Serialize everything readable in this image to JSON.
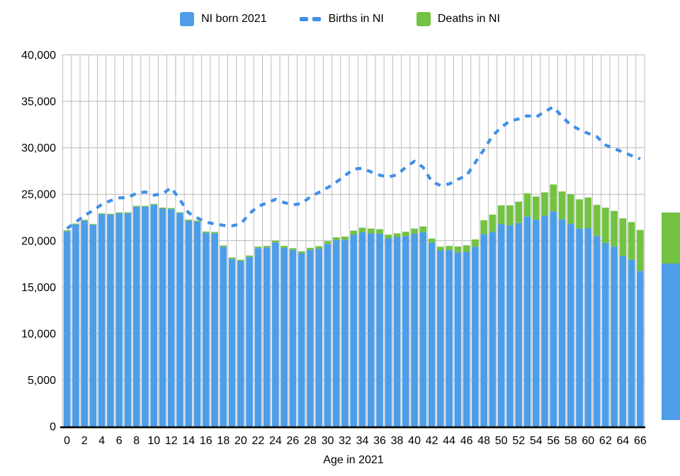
{
  "page": {
    "background": "#ffffff"
  },
  "legend": {
    "items": [
      {
        "label": "NI born 2021",
        "swatch": "square",
        "color": "#4D9DE8"
      },
      {
        "label": "Births in NI",
        "swatch": "dashes",
        "color": "#3E90E7"
      },
      {
        "label": "Deaths in NI",
        "swatch": "square",
        "color": "#74C242"
      }
    ]
  },
  "axis": {
    "x_title": "Age in 2021"
  },
  "chart_data": {
    "type": "bar",
    "subtype": "stacked-bars-with-dashed-line-overlay",
    "title": "",
    "xlabel": "Age in 2021",
    "ylabel": "",
    "ylim": [
      0,
      40000
    ],
    "ytick_step": 5000,
    "xtick_step": 2,
    "grid": {
      "vertical": true,
      "horizontal": true
    },
    "legend_position": "top",
    "categories": [
      0,
      1,
      2,
      3,
      4,
      5,
      6,
      7,
      8,
      9,
      10,
      11,
      12,
      13,
      14,
      15,
      16,
      17,
      18,
      19,
      20,
      21,
      22,
      23,
      24,
      25,
      26,
      27,
      28,
      29,
      30,
      31,
      32,
      33,
      34,
      35,
      36,
      37,
      38,
      39,
      40,
      41,
      42,
      43,
      44,
      45,
      46,
      47,
      48,
      49,
      50,
      51,
      52,
      53,
      54,
      55,
      56,
      57,
      58,
      59,
      60,
      61,
      62,
      63,
      64,
      65,
      66
    ],
    "series": [
      {
        "name": "NI born 2021",
        "kind": "bar",
        "color": "#4D9DE8",
        "values": [
          21000,
          21750,
          22150,
          21700,
          22850,
          22800,
          22950,
          22950,
          23650,
          23650,
          23850,
          23450,
          23400,
          22950,
          22150,
          22050,
          20850,
          20800,
          19350,
          18050,
          17800,
          18250,
          19200,
          19270,
          19800,
          19250,
          19000,
          18650,
          19000,
          19150,
          19650,
          20050,
          20100,
          20650,
          20900,
          20800,
          20750,
          20250,
          20400,
          20500,
          20750,
          20900,
          19800,
          18950,
          19000,
          18750,
          18800,
          19350,
          20700,
          20950,
          21800,
          21650,
          21900,
          22600,
          22250,
          22700,
          23150,
          22300,
          21800,
          21300,
          21350,
          20500,
          19750,
          19350,
          18350,
          17950,
          16750
        ]
      },
      {
        "name": "Deaths in NI",
        "kind": "bar-stacked-on-top",
        "color": "#74C242",
        "values": [
          120,
          90,
          90,
          90,
          90,
          90,
          90,
          90,
          100,
          100,
          110,
          110,
          110,
          110,
          110,
          120,
          130,
          130,
          140,
          140,
          140,
          150,
          160,
          170,
          190,
          190,
          190,
          200,
          230,
          260,
          290,
          310,
          340,
          430,
          490,
          500,
          480,
          400,
          380,
          460,
          550,
          630,
          420,
          400,
          430,
          620,
          700,
          780,
          1500,
          1850,
          2000,
          2150,
          2300,
          2500,
          2500,
          2500,
          2900,
          3000,
          3200,
          3150,
          3300,
          3350,
          3800,
          3850,
          4050,
          4050,
          4400
        ]
      },
      {
        "name": "Births in NI",
        "kind": "dashed-line",
        "color": "#3E90E7",
        "values": [
          21300,
          22000,
          22700,
          23250,
          23900,
          24300,
          24600,
          24650,
          25100,
          25250,
          24900,
          25050,
          25700,
          24400,
          23000,
          22450,
          22000,
          21800,
          21650,
          21600,
          21800,
          22900,
          23700,
          24050,
          24450,
          24100,
          23850,
          24000,
          24700,
          25200,
          25700,
          26300,
          27000,
          27700,
          27800,
          27400,
          27050,
          26850,
          27100,
          27900,
          28550,
          27900,
          26350,
          25950,
          26100,
          26600,
          27000,
          28400,
          29800,
          31300,
          32200,
          32900,
          33100,
          33450,
          33300,
          33900,
          34400,
          33350,
          32450,
          31950,
          31550,
          31200,
          30300,
          29900,
          29550,
          29150,
          28800
        ]
      }
    ]
  },
  "edge_artifact": {
    "description": "partial stacked bar of an adjacent chart clipped at the right screen edge",
    "colors": [
      "#74C242",
      "#4D9DE8"
    ]
  }
}
